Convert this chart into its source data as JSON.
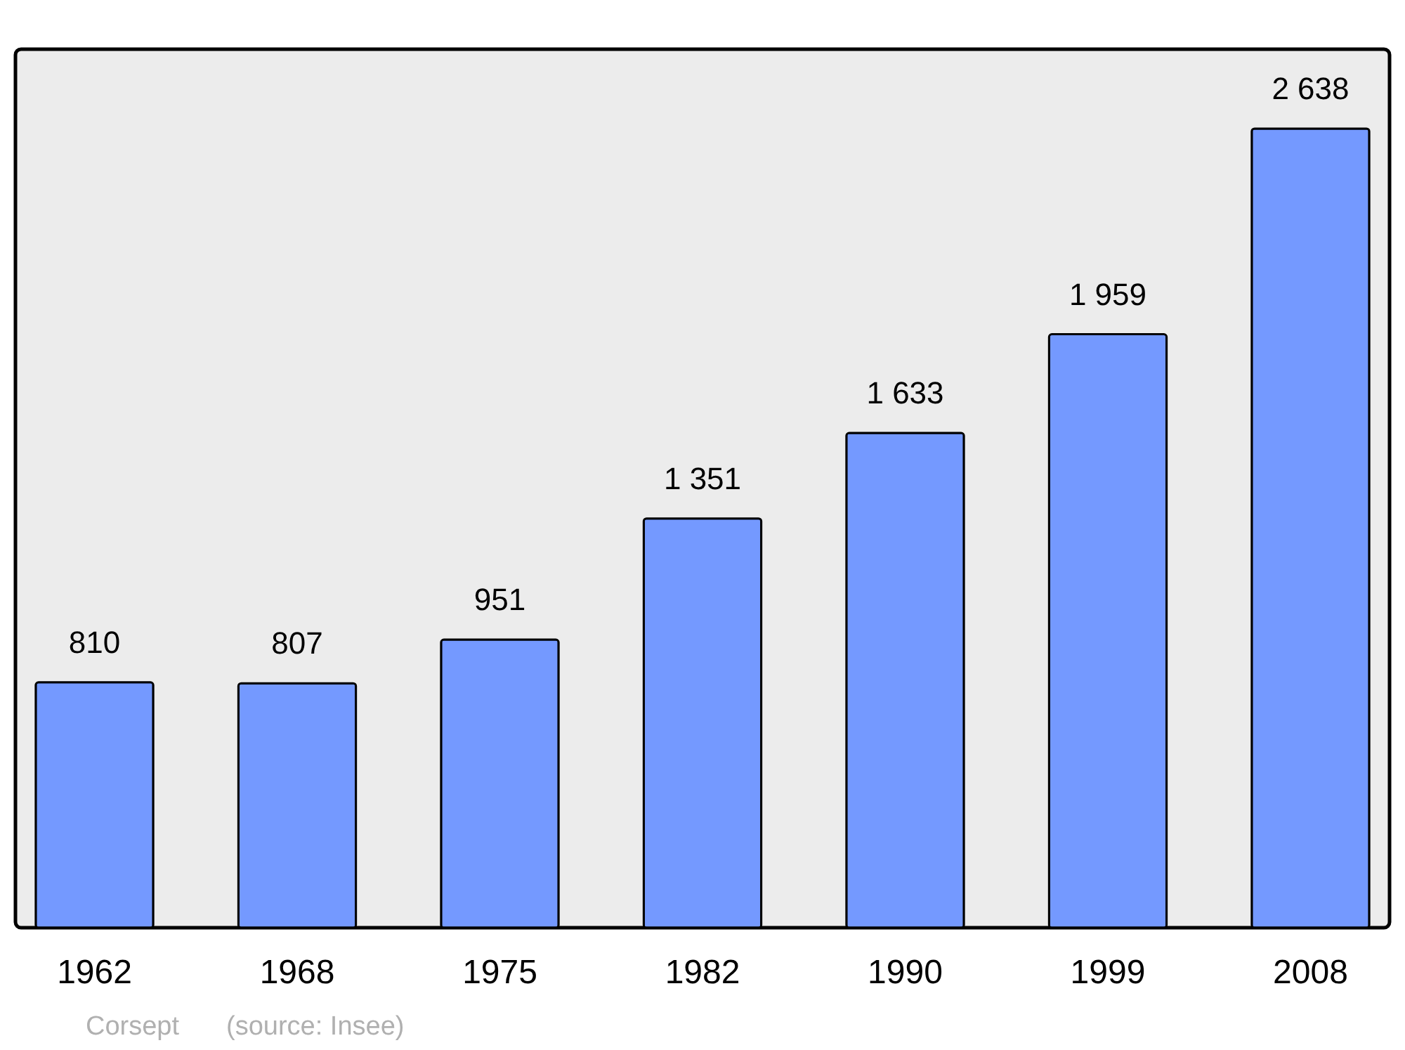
{
  "chart_data": {
    "type": "bar",
    "categories": [
      "1962",
      "1968",
      "1975",
      "1982",
      "1990",
      "1999",
      "2008"
    ],
    "values": [
      810,
      807,
      951,
      1351,
      1633,
      1959,
      2638
    ],
    "value_labels": [
      "810",
      "807",
      "951",
      "1 351",
      "1 633",
      "1 959",
      "2 638"
    ],
    "color": "#7499ff",
    "ylim": [
      0,
      2900
    ],
    "tick_labels": "x",
    "annotations": [
      "Corsept",
      "(source: Insee)"
    ]
  }
}
